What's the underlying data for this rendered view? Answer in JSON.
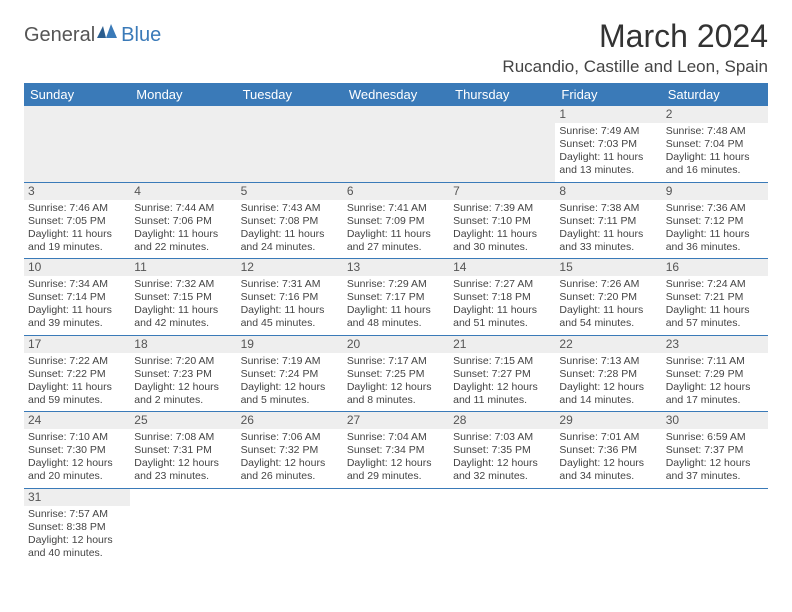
{
  "logo": {
    "part1": "General",
    "part2": "Blue"
  },
  "title": "March 2024",
  "location": "Rucandio, Castille and Leon, Spain",
  "colors": {
    "header_bg": "#3a7ab8",
    "header_text": "#ffffff",
    "daynum_bg": "#eeeeee",
    "cell_border": "#3a7ab8",
    "text": "#444444"
  },
  "day_headers": [
    "Sunday",
    "Monday",
    "Tuesday",
    "Wednesday",
    "Thursday",
    "Friday",
    "Saturday"
  ],
  "weeks": [
    [
      {
        "empty": true
      },
      {
        "empty": true
      },
      {
        "empty": true
      },
      {
        "empty": true
      },
      {
        "empty": true
      },
      {
        "day": "1",
        "sunrise": "Sunrise: 7:49 AM",
        "sunset": "Sunset: 7:03 PM",
        "daylight": "Daylight: 11 hours and 13 minutes."
      },
      {
        "day": "2",
        "sunrise": "Sunrise: 7:48 AM",
        "sunset": "Sunset: 7:04 PM",
        "daylight": "Daylight: 11 hours and 16 minutes."
      }
    ],
    [
      {
        "day": "3",
        "sunrise": "Sunrise: 7:46 AM",
        "sunset": "Sunset: 7:05 PM",
        "daylight": "Daylight: 11 hours and 19 minutes."
      },
      {
        "day": "4",
        "sunrise": "Sunrise: 7:44 AM",
        "sunset": "Sunset: 7:06 PM",
        "daylight": "Daylight: 11 hours and 22 minutes."
      },
      {
        "day": "5",
        "sunrise": "Sunrise: 7:43 AM",
        "sunset": "Sunset: 7:08 PM",
        "daylight": "Daylight: 11 hours and 24 minutes."
      },
      {
        "day": "6",
        "sunrise": "Sunrise: 7:41 AM",
        "sunset": "Sunset: 7:09 PM",
        "daylight": "Daylight: 11 hours and 27 minutes."
      },
      {
        "day": "7",
        "sunrise": "Sunrise: 7:39 AM",
        "sunset": "Sunset: 7:10 PM",
        "daylight": "Daylight: 11 hours and 30 minutes."
      },
      {
        "day": "8",
        "sunrise": "Sunrise: 7:38 AM",
        "sunset": "Sunset: 7:11 PM",
        "daylight": "Daylight: 11 hours and 33 minutes."
      },
      {
        "day": "9",
        "sunrise": "Sunrise: 7:36 AM",
        "sunset": "Sunset: 7:12 PM",
        "daylight": "Daylight: 11 hours and 36 minutes."
      }
    ],
    [
      {
        "day": "10",
        "sunrise": "Sunrise: 7:34 AM",
        "sunset": "Sunset: 7:14 PM",
        "daylight": "Daylight: 11 hours and 39 minutes."
      },
      {
        "day": "11",
        "sunrise": "Sunrise: 7:32 AM",
        "sunset": "Sunset: 7:15 PM",
        "daylight": "Daylight: 11 hours and 42 minutes."
      },
      {
        "day": "12",
        "sunrise": "Sunrise: 7:31 AM",
        "sunset": "Sunset: 7:16 PM",
        "daylight": "Daylight: 11 hours and 45 minutes."
      },
      {
        "day": "13",
        "sunrise": "Sunrise: 7:29 AM",
        "sunset": "Sunset: 7:17 PM",
        "daylight": "Daylight: 11 hours and 48 minutes."
      },
      {
        "day": "14",
        "sunrise": "Sunrise: 7:27 AM",
        "sunset": "Sunset: 7:18 PM",
        "daylight": "Daylight: 11 hours and 51 minutes."
      },
      {
        "day": "15",
        "sunrise": "Sunrise: 7:26 AM",
        "sunset": "Sunset: 7:20 PM",
        "daylight": "Daylight: 11 hours and 54 minutes."
      },
      {
        "day": "16",
        "sunrise": "Sunrise: 7:24 AM",
        "sunset": "Sunset: 7:21 PM",
        "daylight": "Daylight: 11 hours and 57 minutes."
      }
    ],
    [
      {
        "day": "17",
        "sunrise": "Sunrise: 7:22 AM",
        "sunset": "Sunset: 7:22 PM",
        "daylight": "Daylight: 11 hours and 59 minutes."
      },
      {
        "day": "18",
        "sunrise": "Sunrise: 7:20 AM",
        "sunset": "Sunset: 7:23 PM",
        "daylight": "Daylight: 12 hours and 2 minutes."
      },
      {
        "day": "19",
        "sunrise": "Sunrise: 7:19 AM",
        "sunset": "Sunset: 7:24 PM",
        "daylight": "Daylight: 12 hours and 5 minutes."
      },
      {
        "day": "20",
        "sunrise": "Sunrise: 7:17 AM",
        "sunset": "Sunset: 7:25 PM",
        "daylight": "Daylight: 12 hours and 8 minutes."
      },
      {
        "day": "21",
        "sunrise": "Sunrise: 7:15 AM",
        "sunset": "Sunset: 7:27 PM",
        "daylight": "Daylight: 12 hours and 11 minutes."
      },
      {
        "day": "22",
        "sunrise": "Sunrise: 7:13 AM",
        "sunset": "Sunset: 7:28 PM",
        "daylight": "Daylight: 12 hours and 14 minutes."
      },
      {
        "day": "23",
        "sunrise": "Sunrise: 7:11 AM",
        "sunset": "Sunset: 7:29 PM",
        "daylight": "Daylight: 12 hours and 17 minutes."
      }
    ],
    [
      {
        "day": "24",
        "sunrise": "Sunrise: 7:10 AM",
        "sunset": "Sunset: 7:30 PM",
        "daylight": "Daylight: 12 hours and 20 minutes."
      },
      {
        "day": "25",
        "sunrise": "Sunrise: 7:08 AM",
        "sunset": "Sunset: 7:31 PM",
        "daylight": "Daylight: 12 hours and 23 minutes."
      },
      {
        "day": "26",
        "sunrise": "Sunrise: 7:06 AM",
        "sunset": "Sunset: 7:32 PM",
        "daylight": "Daylight: 12 hours and 26 minutes."
      },
      {
        "day": "27",
        "sunrise": "Sunrise: 7:04 AM",
        "sunset": "Sunset: 7:34 PM",
        "daylight": "Daylight: 12 hours and 29 minutes."
      },
      {
        "day": "28",
        "sunrise": "Sunrise: 7:03 AM",
        "sunset": "Sunset: 7:35 PM",
        "daylight": "Daylight: 12 hours and 32 minutes."
      },
      {
        "day": "29",
        "sunrise": "Sunrise: 7:01 AM",
        "sunset": "Sunset: 7:36 PM",
        "daylight": "Daylight: 12 hours and 34 minutes."
      },
      {
        "day": "30",
        "sunrise": "Sunrise: 6:59 AM",
        "sunset": "Sunset: 7:37 PM",
        "daylight": "Daylight: 12 hours and 37 minutes."
      }
    ],
    [
      {
        "day": "31",
        "sunrise": "Sunrise: 7:57 AM",
        "sunset": "Sunset: 8:38 PM",
        "daylight": "Daylight: 12 hours and 40 minutes."
      },
      {
        "empty": true
      },
      {
        "empty": true
      },
      {
        "empty": true
      },
      {
        "empty": true
      },
      {
        "empty": true
      },
      {
        "empty": true
      }
    ]
  ]
}
